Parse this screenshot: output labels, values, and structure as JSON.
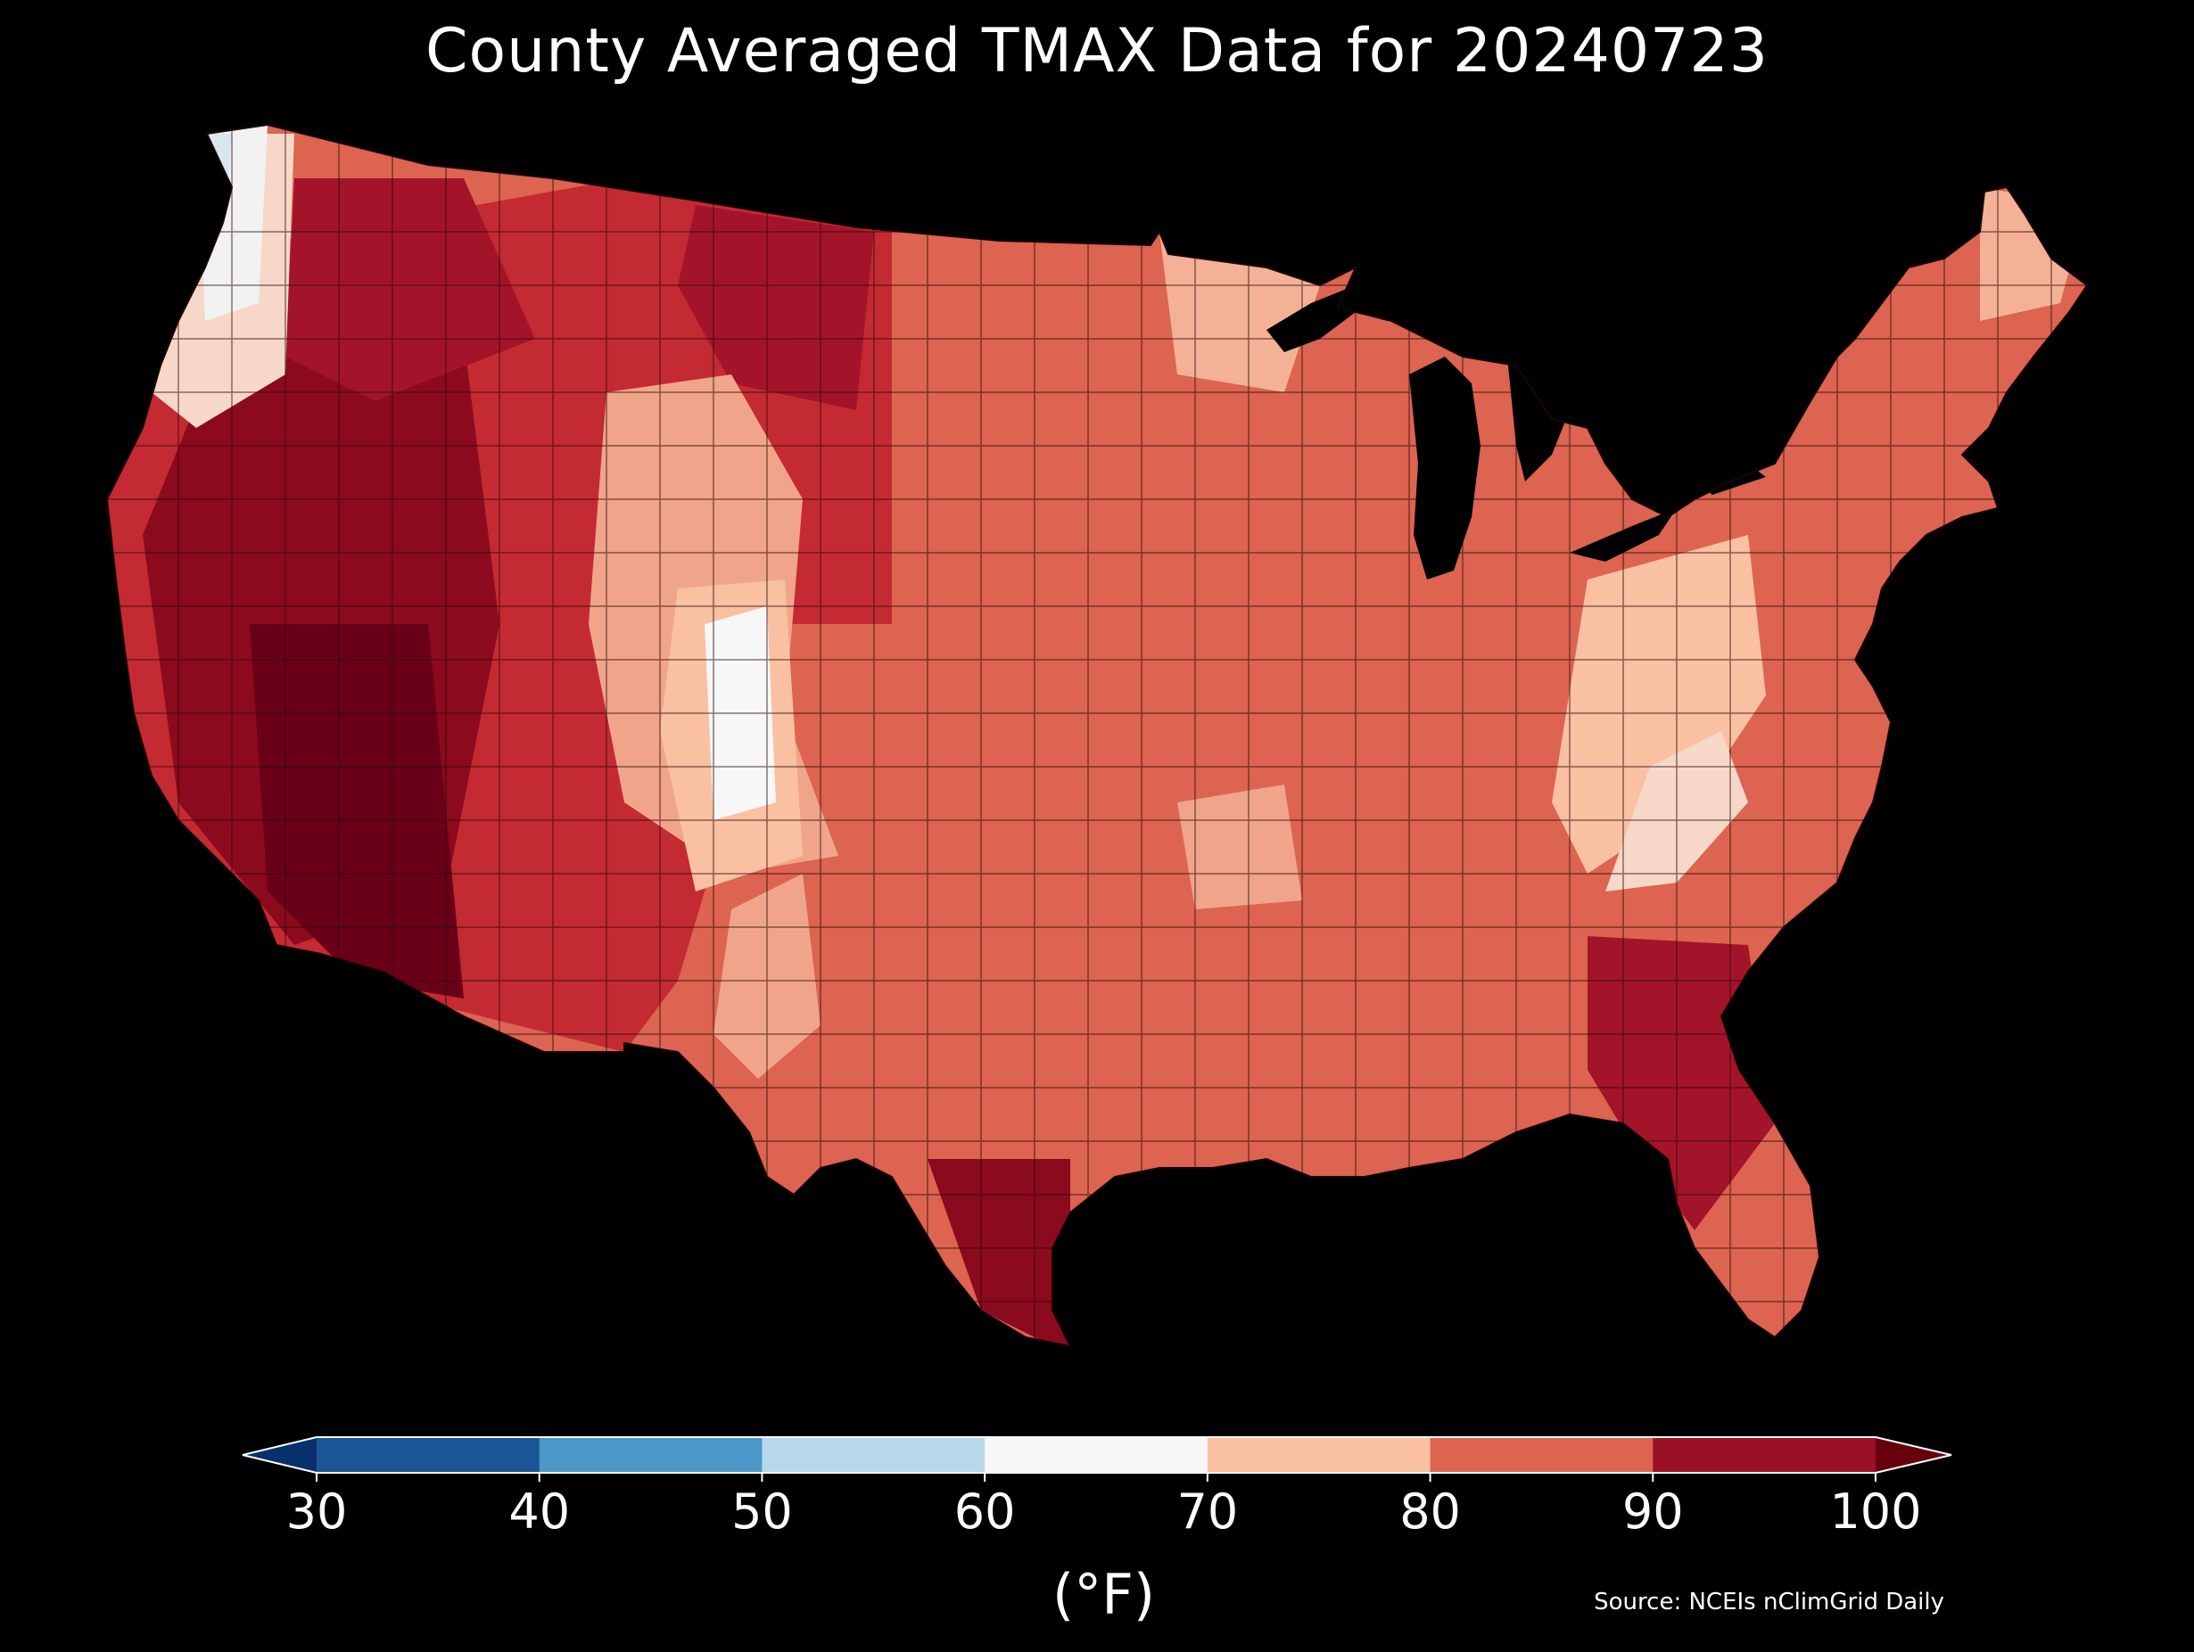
{
  "title": "County Averaged TMAX Data for 20240723",
  "colorbar": {
    "unit_label": "(°F)",
    "ticks": [
      "30",
      "40",
      "50",
      "60",
      "70",
      "80",
      "90",
      "100"
    ],
    "bins": [
      {
        "from": 30,
        "to": 40,
        "color": "#1a5596"
      },
      {
        "from": 40,
        "to": 50,
        "color": "#4b98c8"
      },
      {
        "from": 50,
        "to": 60,
        "color": "#b7d7ea"
      },
      {
        "from": 60,
        "to": 70,
        "color": "#f7f7f7"
      },
      {
        "from": 70,
        "to": 80,
        "color": "#f9c0a2"
      },
      {
        "from": 80,
        "to": 90,
        "color": "#dc6450"
      },
      {
        "from": 90,
        "to": 100,
        "color": "#9a1126"
      }
    ],
    "under_color": "#08306b",
    "over_color": "#67000d"
  },
  "source": "Source: NCEIs nClimGrid Daily",
  "map": {
    "region": "Contiguous United States counties",
    "variable": "TMAX",
    "background": "#000000",
    "border_color": "#2a0a0a"
  }
}
